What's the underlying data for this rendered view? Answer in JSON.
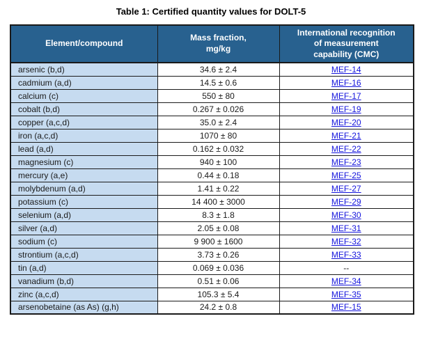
{
  "title": "Table 1: Certified quantity values for DOLT-5",
  "colors": {
    "header_bg": "#28618F",
    "header_text": "#FFFFFF",
    "row_label_bg": "#C6DBF0",
    "link": "#1414DC",
    "border": "#1A1A1A",
    "text": "#1A1A1A"
  },
  "table": {
    "headers": [
      "Element/compound",
      "Mass fraction,\nmg/kg",
      "International recognition\nof measurement\ncapability (CMC)"
    ],
    "rows": [
      {
        "element": "arsenic (b,d)",
        "mass_fraction": "34.6 ± 2.4",
        "cmc": "MEF-14",
        "cmc_is_link": true
      },
      {
        "element": "cadmium (a,d)",
        "mass_fraction": "14.5 ± 0.6",
        "cmc": "MEF-16",
        "cmc_is_link": true
      },
      {
        "element": "calcium (c)",
        "mass_fraction": "550 ± 80",
        "cmc": "MEF-17",
        "cmc_is_link": true
      },
      {
        "element": "cobalt (b,d)",
        "mass_fraction": "0.267 ± 0.026",
        "cmc": "MEF-19",
        "cmc_is_link": true
      },
      {
        "element": "copper (a,c,d)",
        "mass_fraction": "35.0 ± 2.4",
        "cmc": "MEF-20",
        "cmc_is_link": true
      },
      {
        "element": "iron (a,c,d)",
        "mass_fraction": "1070 ± 80",
        "cmc": "MEF-21",
        "cmc_is_link": true
      },
      {
        "element": "lead (a,d)",
        "mass_fraction": "0.162 ± 0.032",
        "cmc": "MEF-22",
        "cmc_is_link": true
      },
      {
        "element": "magnesium (c)",
        "mass_fraction": "940 ± 100",
        "cmc": "MEF-23",
        "cmc_is_link": true
      },
      {
        "element": "mercury (a,e)",
        "mass_fraction": "0.44 ± 0.18",
        "cmc": "MEF-25",
        "cmc_is_link": true
      },
      {
        "element": "molybdenum (a,d)",
        "mass_fraction": "1.41 ± 0.22",
        "cmc": "MEF-27",
        "cmc_is_link": true
      },
      {
        "element": "potassium (c)",
        "mass_fraction": "14 400 ± 3000",
        "cmc": "MEF-29",
        "cmc_is_link": true
      },
      {
        "element": "selenium (a,d)",
        "mass_fraction": "8.3 ± 1.8",
        "cmc": "MEF-30",
        "cmc_is_link": true
      },
      {
        "element": "silver (a,d)",
        "mass_fraction": "2.05 ± 0.08",
        "cmc": "MEF-31",
        "cmc_is_link": true
      },
      {
        "element": "sodium (c)",
        "mass_fraction": "9 900 ± 1600",
        "cmc": "MEF-32",
        "cmc_is_link": true
      },
      {
        "element": "strontium (a,c,d)",
        "mass_fraction": "3.73 ± 0.26",
        "cmc": "MEF-33",
        "cmc_is_link": true
      },
      {
        "element": "tin (a,d)",
        "mass_fraction": "0.069 ± 0.036",
        "cmc": "--",
        "cmc_is_link": false
      },
      {
        "element": "vanadium (b,d)",
        "mass_fraction": "0.51 ± 0.06",
        "cmc": "MEF-34",
        "cmc_is_link": true
      },
      {
        "element": "zinc (a,c,d)",
        "mass_fraction": "105.3 ± 5.4",
        "cmc": "MEF-35",
        "cmc_is_link": true
      },
      {
        "element": "arsenobetaine (as As) (g,h)",
        "mass_fraction": "24.2 ± 0.8",
        "cmc": "MEF-15",
        "cmc_is_link": true
      }
    ]
  }
}
